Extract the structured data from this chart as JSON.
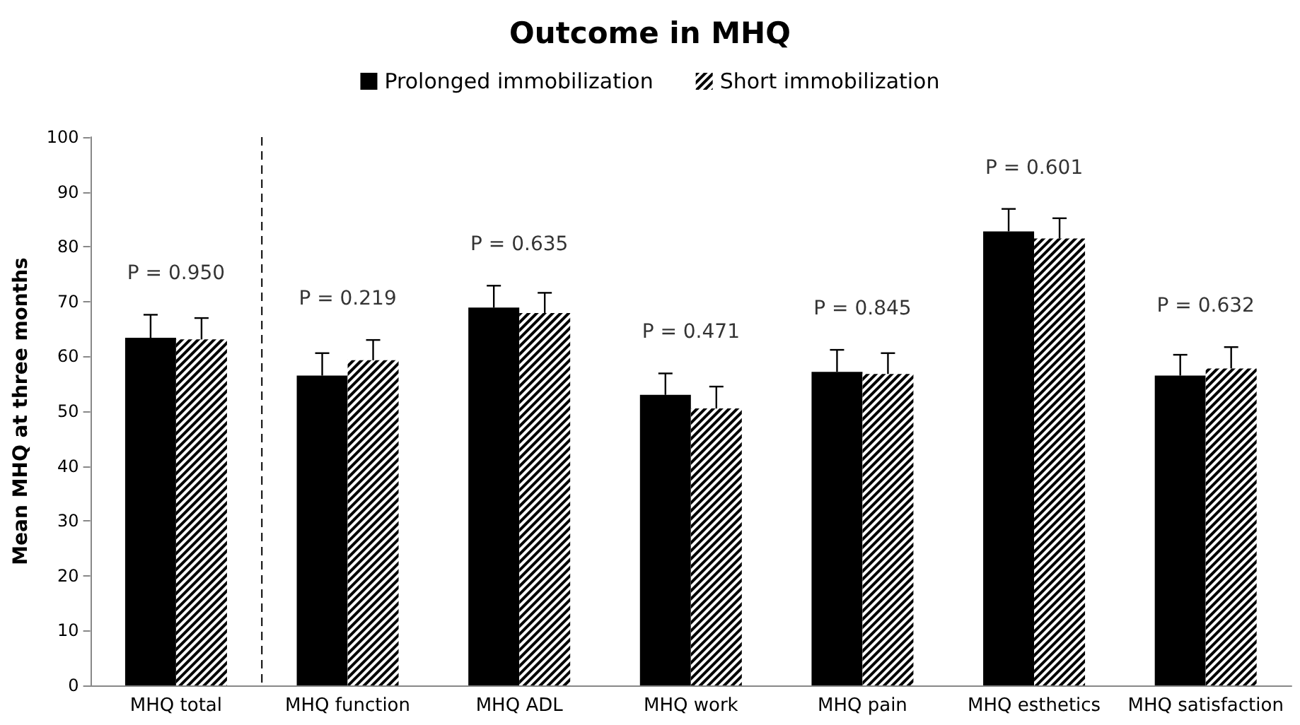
{
  "chart_data": {
    "type": "bar",
    "title": "Outcome in MHQ",
    "ylabel": "Mean MHQ at three months",
    "categories": [
      "MHQ total",
      "MHQ function",
      "MHQ ADL",
      "MHQ work",
      "MHQ pain",
      "MHQ esthetics",
      "MHQ satisfaction"
    ],
    "series": [
      {
        "name": "Prolonged immobilization",
        "color": "#000000",
        "values": [
          63.4,
          56.5,
          68.9,
          53.0,
          57.2,
          82.8,
          56.5
        ],
        "errors": [
          4.2,
          4.1,
          4.0,
          3.9,
          4.0,
          4.1,
          3.8
        ]
      },
      {
        "name": "Short immobilization",
        "color": "#808080",
        "values": [
          63.1,
          59.3,
          67.9,
          50.5,
          56.8,
          81.5,
          57.8
        ],
        "errors": [
          3.9,
          3.7,
          3.7,
          4.0,
          3.8,
          3.7,
          3.9
        ]
      }
    ],
    "ylim": [
      0,
      100
    ],
    "yticks": [
      0,
      10,
      20,
      30,
      40,
      50,
      60,
      70,
      80,
      90,
      100
    ],
    "grid": false,
    "legend": "top",
    "annotations": [
      "P = 0.950",
      "P = 0.219",
      "P = 0.635",
      "P = 0.471",
      "P = 0.845",
      "P = 0.601",
      "P = 0.632"
    ]
  }
}
